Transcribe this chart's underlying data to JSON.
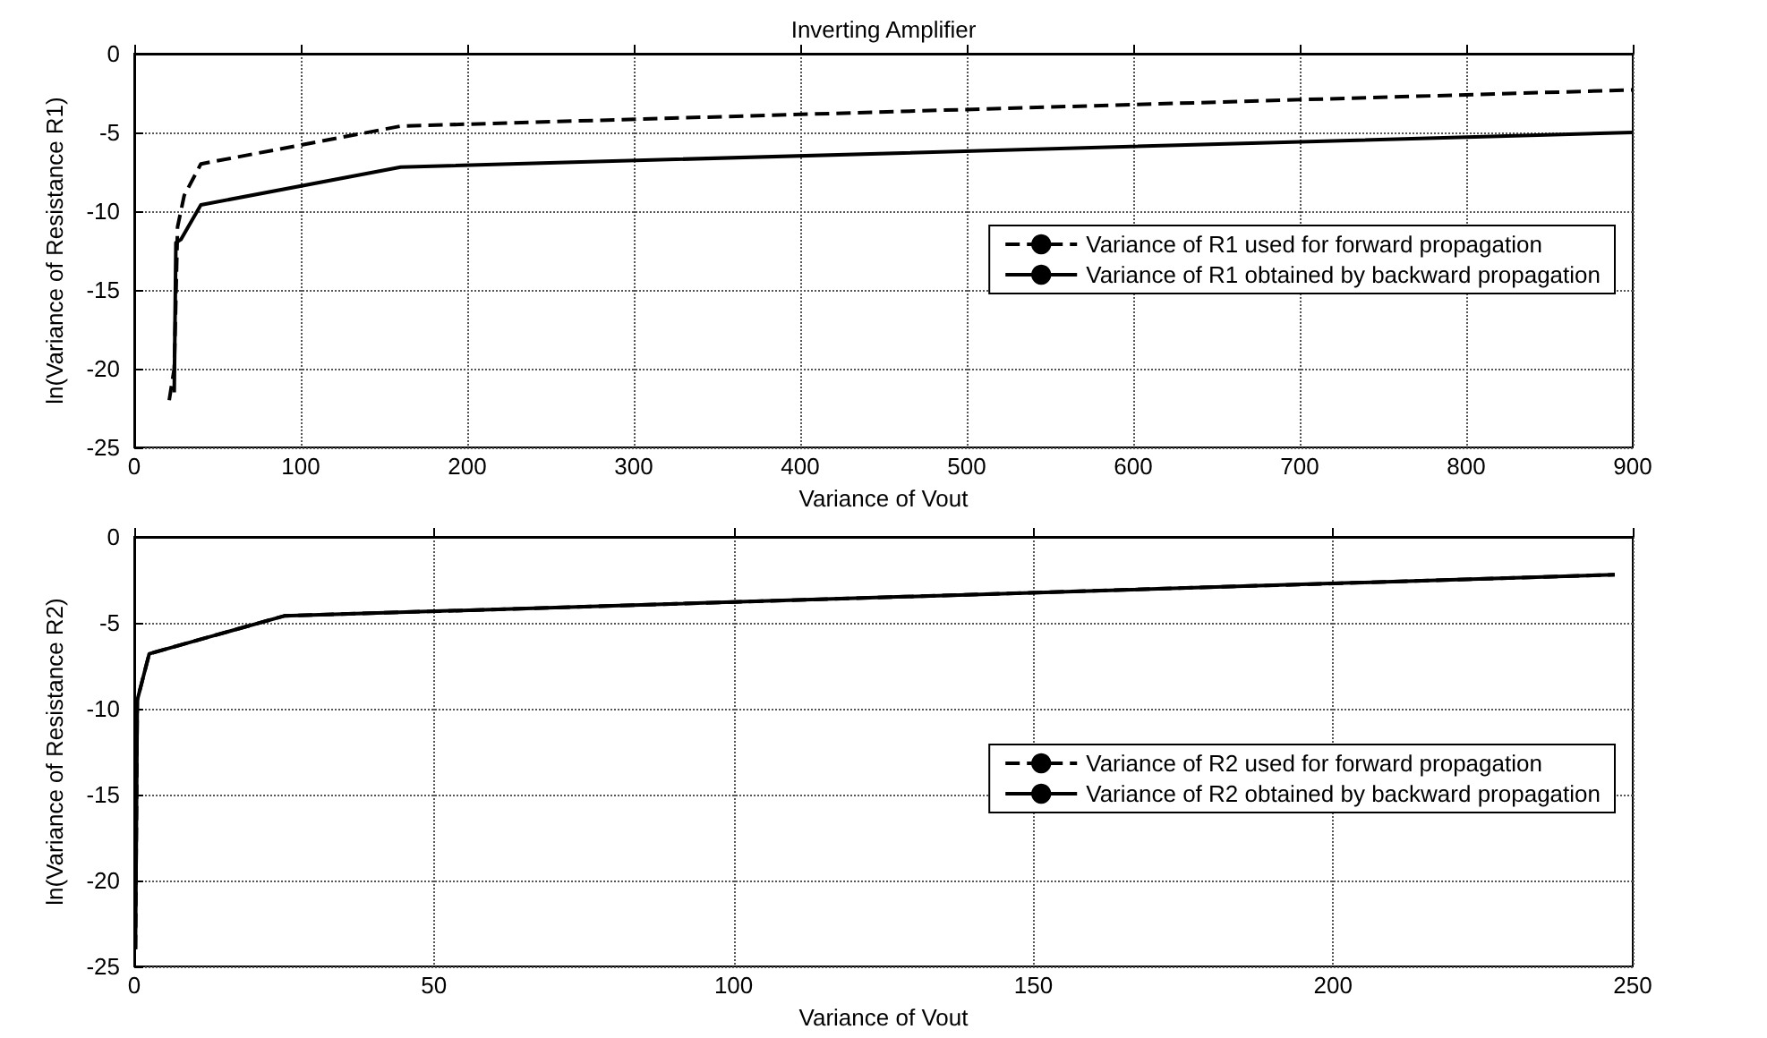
{
  "chart_data": [
    {
      "type": "line",
      "title": "Inverting Amplifier",
      "xlabel": "Variance of Vout",
      "ylabel": "ln(Variance of Resistance R1)",
      "xlim": [
        0,
        900
      ],
      "xticks": [
        0,
        100,
        200,
        300,
        400,
        500,
        600,
        700,
        800,
        900
      ],
      "ylim": [
        -25,
        0
      ],
      "yticks": [
        -25,
        -20,
        -15,
        -10,
        -5,
        0
      ],
      "grid": true,
      "legend": "right",
      "marker": "none",
      "series": [
        {
          "name": "Variance of R1 used for forward propagation",
          "color": "#000000",
          "line_style": "dashed",
          "x": [
            21,
            24,
            26,
            30,
            40,
            160,
            900
          ],
          "values": [
            -22,
            -20,
            -11,
            -9,
            -7,
            -4.6,
            -2.3
          ]
        },
        {
          "name": "Variance of R1 obtained by backward propagation",
          "color": "#000000",
          "line_style": "solid",
          "x": [
            24,
            25,
            28,
            40,
            160,
            900
          ],
          "values": [
            -21.5,
            -12,
            -11.8,
            -9.6,
            -7.2,
            -5
          ]
        }
      ]
    },
    {
      "type": "line",
      "xlabel": "Variance of Vout",
      "ylabel": "ln(Variance of Resistance R2)",
      "xlim": [
        0,
        250
      ],
      "xticks": [
        0,
        50,
        100,
        150,
        200,
        250
      ],
      "ylim": [
        -25,
        0
      ],
      "yticks": [
        -25,
        -20,
        -15,
        -10,
        -5,
        0
      ],
      "grid": true,
      "legend": "right",
      "marker": "none",
      "series": [
        {
          "name": "Variance of R2 used for forward propagation",
          "color": "#000000",
          "line_style": "dashed",
          "x": [
            0.2,
            0.5,
            2.5,
            25,
            247
          ],
          "values": [
            -24,
            -9.5,
            -6.8,
            -4.6,
            -2.2
          ]
        },
        {
          "name": "Variance of R2 obtained by backward propagation",
          "color": "#000000",
          "line_style": "solid",
          "x": [
            0.2,
            0.5,
            2.5,
            25,
            247
          ],
          "values": [
            -24,
            -9.5,
            -6.8,
            -4.6,
            -2.2
          ]
        }
      ]
    }
  ]
}
